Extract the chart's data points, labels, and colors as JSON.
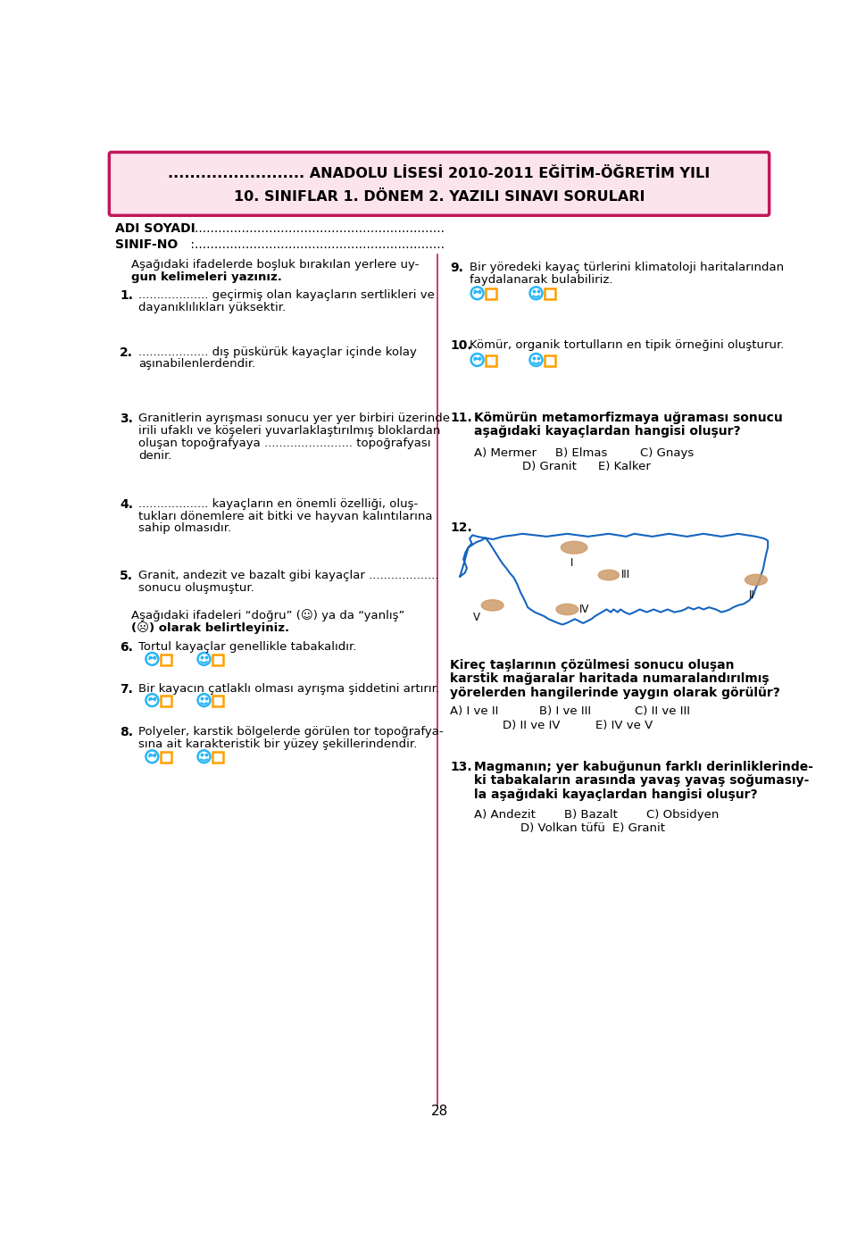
{
  "title_line1": "......................... ANADOLU LİSESİ 2010-2011 EĞİTİM-ÖĞRETİM YILI",
  "title_line2": "10. SINIFLAR 1. DÖNEM 2. YAZILI SINAVI SORULARI",
  "header_bg": "#fce4ec",
  "header_border": "#c2185b",
  "page_bg": "#ffffff",
  "text_color": "#000000",
  "divider_color": "#c2185b",
  "smiley_color": "#29b6f6",
  "box_color": "#ffa000",
  "map_border": "#1565c0",
  "map_fill": "#ffffff",
  "ellipse_color": "#cd9b6a",
  "page_number": "28"
}
